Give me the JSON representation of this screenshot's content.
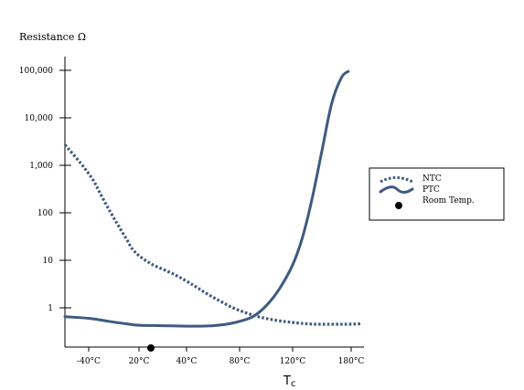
{
  "chart_data": {
    "type": "line",
    "title": "",
    "ylabel": "Resistance Ω",
    "xlabel": "Tc",
    "xlabel_main": "T",
    "xlabel_sub": "c",
    "yscale": "log",
    "ylim": [
      0.3,
      100000
    ],
    "xlim": [
      -55,
      185
    ],
    "grid": false,
    "legend": "right",
    "y_ticks": [
      {
        "value": 1,
        "label": "1"
      },
      {
        "value": 10,
        "label": "10"
      },
      {
        "value": 100,
        "label": "100"
      },
      {
        "value": 1000,
        "label": "1,000"
      },
      {
        "value": 10000,
        "label": "10,000"
      },
      {
        "value": 100000,
        "label": "100,000"
      }
    ],
    "x_ticks": [
      {
        "value": -40,
        "label": "-40°C"
      },
      {
        "value": 20,
        "label": "20°C"
      },
      {
        "value": 40,
        "label": "40°C"
      },
      {
        "value": 80,
        "label": "80°C"
      },
      {
        "value": 120,
        "label": "120°C"
      },
      {
        "value": 180,
        "label": "180°C"
      }
    ],
    "series": [
      {
        "name": "NTC",
        "style": "dotted",
        "color": "#3d5a80",
        "x": [
          -55,
          -45,
          -35,
          -25,
          -15,
          -5,
          5,
          15,
          25,
          35,
          45,
          55,
          65,
          75,
          85,
          95,
          105,
          115,
          125,
          135,
          145,
          155,
          165,
          175,
          185
        ],
        "y": [
          2700,
          1100,
          500,
          230,
          110,
          55,
          28,
          15,
          8.5,
          5,
          3,
          2,
          1.4,
          1,
          0.78,
          0.64,
          0.56,
          0.51,
          0.48,
          0.46,
          0.45,
          0.45,
          0.45,
          0.45,
          0.46
        ]
      },
      {
        "name": "PTC",
        "style": "solid",
        "color": "#3d5a80",
        "x": [
          -55,
          -40,
          -25,
          -10,
          5,
          20,
          30,
          40,
          50,
          60,
          70,
          80,
          90,
          100,
          110,
          120,
          130,
          140,
          150,
          160,
          170,
          177
        ],
        "y": [
          0.65,
          0.6,
          0.55,
          0.5,
          0.46,
          0.43,
          0.42,
          0.41,
          0.41,
          0.42,
          0.45,
          0.52,
          0.65,
          1.1,
          2.5,
          8,
          30,
          200,
          2000,
          20000,
          70000,
          95000
        ]
      }
    ],
    "markers": [
      {
        "name": "Room Temp.",
        "x": 25,
        "shape": "dot",
        "color": "#000000"
      }
    ]
  }
}
